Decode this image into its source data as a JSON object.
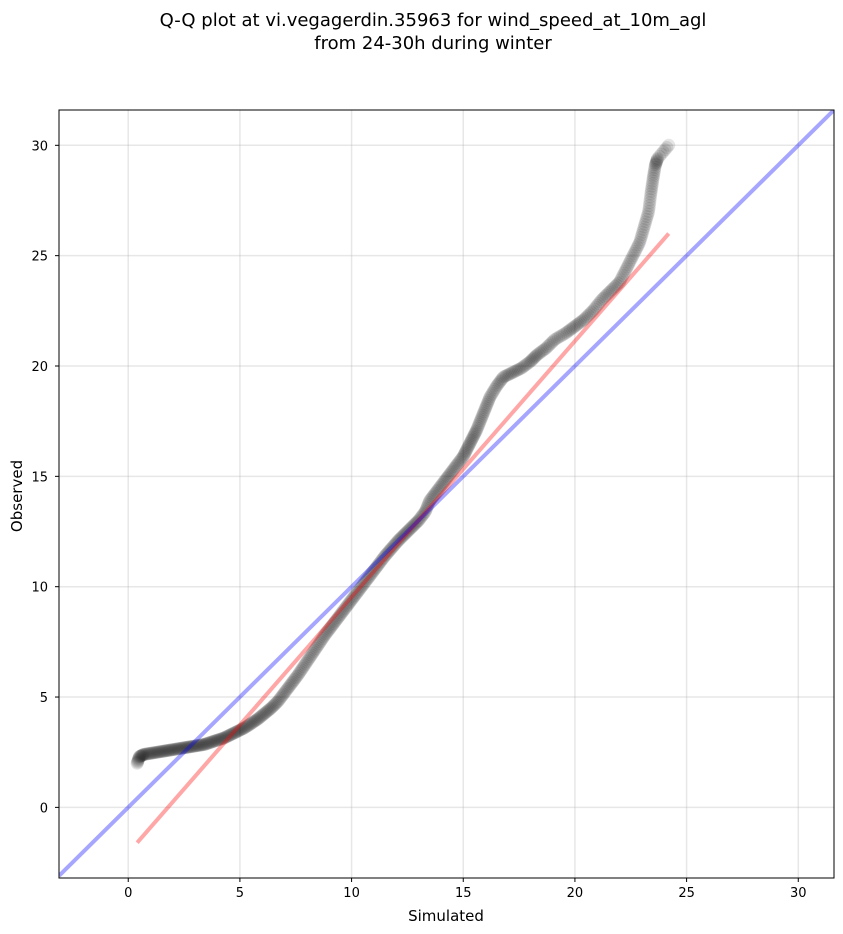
{
  "chart_data": {
    "type": "scatter",
    "title": "Q-Q plot at vi.vegagerdin.35963 for wind_speed_at_10m_agl",
    "subtitle": "from 24-30h during winter",
    "xlabel": "Simulated",
    "ylabel": "Observed",
    "xlim": [
      -3.1,
      31.6
    ],
    "ylim": [
      -3.2,
      31.6
    ],
    "xticks": [
      0,
      5,
      10,
      15,
      20,
      25,
      30
    ],
    "yticks": [
      0,
      5,
      10,
      15,
      20,
      25,
      30
    ],
    "grid": true,
    "series": [
      {
        "role": "quantiles",
        "color": "#000000",
        "opacity": 0.1,
        "points": [
          [
            0.4,
            2.0
          ],
          [
            0.5,
            2.3
          ],
          [
            0.7,
            2.4
          ],
          [
            1.0,
            2.45
          ],
          [
            1.3,
            2.5
          ],
          [
            1.6,
            2.55
          ],
          [
            1.9,
            2.6
          ],
          [
            2.2,
            2.65
          ],
          [
            2.5,
            2.7
          ],
          [
            2.8,
            2.75
          ],
          [
            3.1,
            2.8
          ],
          [
            3.4,
            2.85
          ],
          [
            3.7,
            2.95
          ],
          [
            4.0,
            3.05
          ],
          [
            4.3,
            3.15
          ],
          [
            4.6,
            3.3
          ],
          [
            4.9,
            3.45
          ],
          [
            5.2,
            3.6
          ],
          [
            5.5,
            3.8
          ],
          [
            5.8,
            4.0
          ],
          [
            6.1,
            4.25
          ],
          [
            6.4,
            4.5
          ],
          [
            6.7,
            4.8
          ],
          [
            7.0,
            5.2
          ],
          [
            7.3,
            5.6
          ],
          [
            7.6,
            6.0
          ],
          [
            7.9,
            6.45
          ],
          [
            8.2,
            6.9
          ],
          [
            8.5,
            7.35
          ],
          [
            8.8,
            7.8
          ],
          [
            9.1,
            8.2
          ],
          [
            9.4,
            8.6
          ],
          [
            9.7,
            9.0
          ],
          [
            10.0,
            9.4
          ],
          [
            10.3,
            9.8
          ],
          [
            10.6,
            10.2
          ],
          [
            10.9,
            10.6
          ],
          [
            11.2,
            11.0
          ],
          [
            11.5,
            11.4
          ],
          [
            11.8,
            11.75
          ],
          [
            12.1,
            12.1
          ],
          [
            12.4,
            12.4
          ],
          [
            12.7,
            12.7
          ],
          [
            13.0,
            13.0
          ],
          [
            13.3,
            13.4
          ],
          [
            13.5,
            13.9
          ],
          [
            13.8,
            14.3
          ],
          [
            14.1,
            14.7
          ],
          [
            14.4,
            15.1
          ],
          [
            14.7,
            15.5
          ],
          [
            15.0,
            15.9
          ],
          [
            15.2,
            16.3
          ],
          [
            15.4,
            16.7
          ],
          [
            15.6,
            17.1
          ],
          [
            15.8,
            17.6
          ],
          [
            16.0,
            18.1
          ],
          [
            16.2,
            18.6
          ],
          [
            16.5,
            19.1
          ],
          [
            16.8,
            19.5
          ],
          [
            17.2,
            19.7
          ],
          [
            17.6,
            19.9
          ],
          [
            18.0,
            20.2
          ],
          [
            18.3,
            20.5
          ],
          [
            18.7,
            20.8
          ],
          [
            19.1,
            21.2
          ],
          [
            19.6,
            21.5
          ],
          [
            20.0,
            21.8
          ],
          [
            20.4,
            22.1
          ],
          [
            20.8,
            22.5
          ],
          [
            21.2,
            23.0
          ],
          [
            21.6,
            23.4
          ],
          [
            22.0,
            23.8
          ],
          [
            22.3,
            24.4
          ],
          [
            22.6,
            25.0
          ],
          [
            22.9,
            25.6
          ],
          [
            23.1,
            26.3
          ],
          [
            23.3,
            27.0
          ],
          [
            23.4,
            27.8
          ],
          [
            23.5,
            28.5
          ],
          [
            23.6,
            29.1
          ],
          [
            23.7,
            29.4
          ],
          [
            24.2,
            30.0
          ]
        ]
      },
      {
        "role": "fit-line",
        "color": "#ff0000",
        "opacity": 0.35,
        "points": [
          [
            0.4,
            -1.6
          ],
          [
            24.2,
            26.0
          ]
        ]
      },
      {
        "role": "identity-line",
        "color": "#0000ff",
        "opacity": 0.35,
        "points": [
          [
            -3.1,
            -3.1
          ],
          [
            31.6,
            31.6
          ]
        ]
      }
    ]
  }
}
